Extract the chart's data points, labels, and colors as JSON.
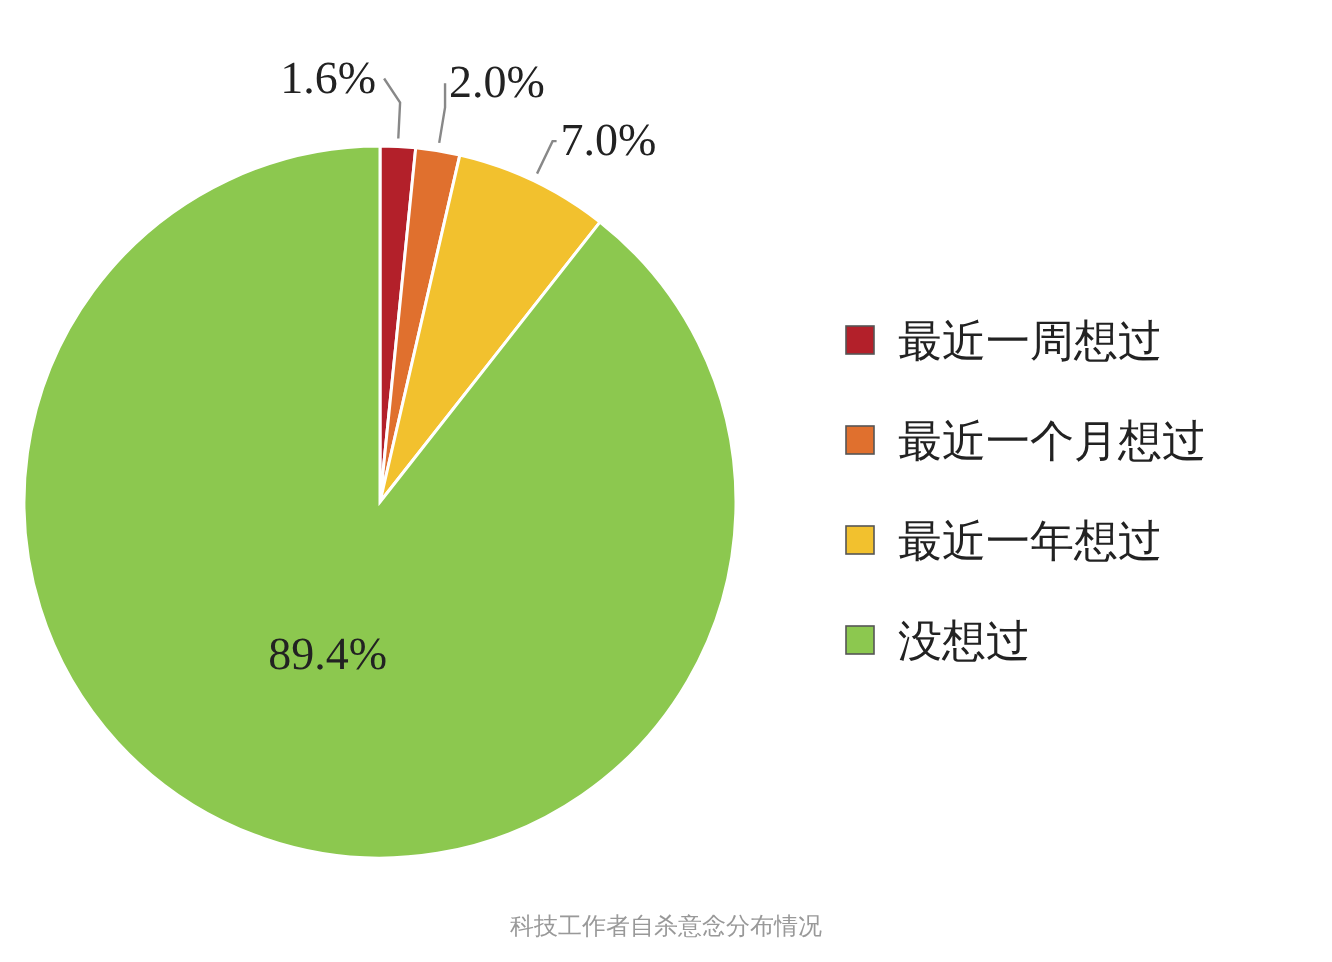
{
  "chart_data": {
    "type": "pie",
    "categories": [
      "最近一周想过",
      "最近一个月想过",
      "最近一年想过",
      "没想过"
    ],
    "values": [
      1.6,
      2.0,
      7.0,
      89.4
    ],
    "colors": [
      "#b3202a",
      "#e0702e",
      "#f2c12e",
      "#8cc84f"
    ],
    "value_labels": [
      "1.6%",
      "2.0%",
      "7.0%",
      "89.4%"
    ],
    "legend": "right",
    "annotations": [
      "科技工作者自杀意念分布情况"
    ]
  }
}
